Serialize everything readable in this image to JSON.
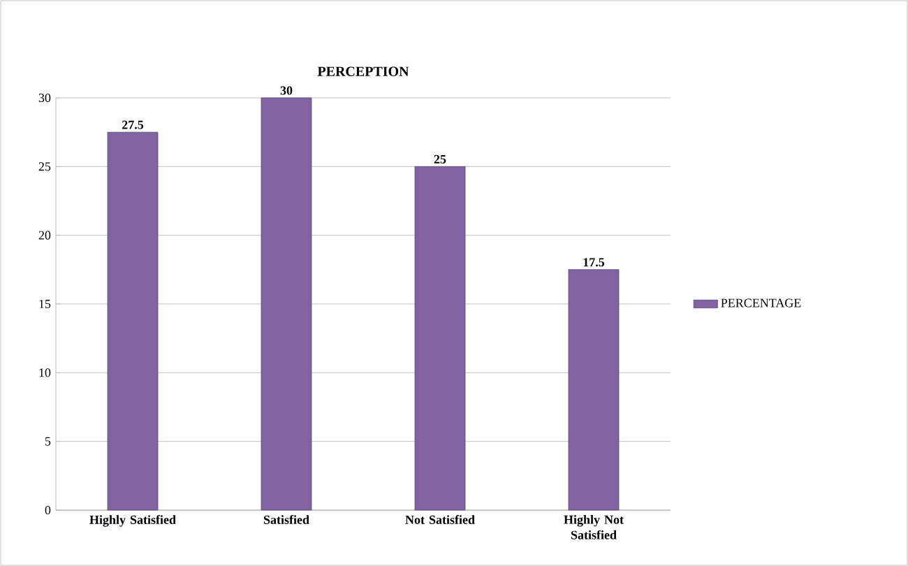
{
  "chart_data": {
    "type": "bar",
    "title": "PERCEPTION",
    "categories": [
      "Highly Satisfied",
      "Satisfied",
      "Not Satisfied",
      "Highly Not Satisfied"
    ],
    "series": [
      {
        "name": "PERCENTAGE",
        "color": "#8064a2",
        "values": [
          27.5,
          30,
          25,
          17.5
        ]
      }
    ],
    "ylim": [
      0,
      30
    ],
    "yticks": [
      0,
      5,
      10,
      15,
      20,
      25,
      30
    ],
    "grid": "y",
    "legend": "right",
    "data_labels": true
  }
}
